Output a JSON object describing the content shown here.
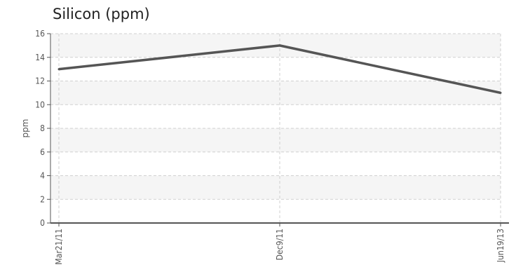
{
  "chart_data": {
    "type": "line",
    "title": "Silicon (ppm)",
    "xlabel": "",
    "ylabel": "ppm",
    "categories": [
      "Mar21/11",
      "Dec9/11",
      "Jun19/13"
    ],
    "series": [
      {
        "values": [
          13,
          15,
          11
        ]
      }
    ],
    "ylim": [
      0,
      16
    ],
    "yticks": [
      0,
      2,
      4,
      6,
      8,
      10,
      12,
      14,
      16
    ],
    "grid": true,
    "colors": {
      "line": "#555555",
      "band": "#f5f5f5",
      "grid": "#d0d0d0",
      "axis": "#555555"
    }
  }
}
